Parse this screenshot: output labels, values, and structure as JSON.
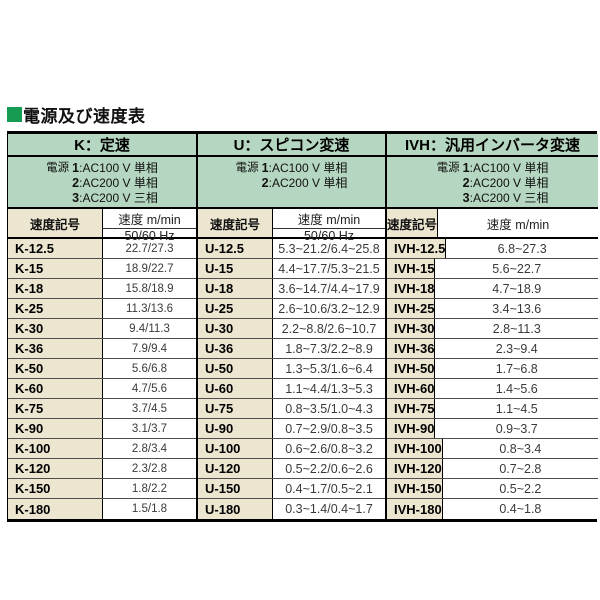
{
  "page": {
    "title": "電源及び速度表"
  },
  "colors": {
    "title_bullet_green": "#169c52",
    "header_green": "#b5d6c0",
    "symbol_beige": "#ece6d1",
    "border_black": "#000000"
  },
  "table": {
    "groups": [
      {
        "header": "K：定速",
        "power_label": "電源",
        "power_items": [
          {
            "num": "1",
            "desc": ":AC100 V 単相"
          },
          {
            "num": "2",
            "desc": ":AC200 V 単相"
          },
          {
            "num": "3",
            "desc": ":AC200 V 三相"
          }
        ],
        "symbol_header": "速度記号",
        "speed_header": "速度 m/min",
        "speed_subheader": "50/60 Hz",
        "rows": [
          {
            "symbol": "K-12.5",
            "value": "22.7/27.3"
          },
          {
            "symbol": "K-15",
            "value": "18.9/22.7"
          },
          {
            "symbol": "K-18",
            "value": "15.8/18.9"
          },
          {
            "symbol": "K-25",
            "value": "11.3/13.6"
          },
          {
            "symbol": "K-30",
            "value": "9.4/11.3"
          },
          {
            "symbol": "K-36",
            "value": "7.9/9.4"
          },
          {
            "symbol": "K-50",
            "value": "5.6/6.8"
          },
          {
            "symbol": "K-60",
            "value": "4.7/5.6"
          },
          {
            "symbol": "K-75",
            "value": "3.7/4.5"
          },
          {
            "symbol": "K-90",
            "value": "3.1/3.7"
          },
          {
            "symbol": "K-100",
            "value": "2.8/3.4"
          },
          {
            "symbol": "K-120",
            "value": "2.3/2.8"
          },
          {
            "symbol": "K-150",
            "value": "1.8/2.2"
          },
          {
            "symbol": "K-180",
            "value": "1.5/1.8"
          }
        ]
      },
      {
        "header": "U：スピコン変速",
        "power_label": "電源",
        "power_items": [
          {
            "num": "1",
            "desc": ":AC100 V 単相"
          },
          {
            "num": "2",
            "desc": ":AC200 V 単相"
          }
        ],
        "symbol_header": "速度記号",
        "speed_header": "速度 m/min",
        "speed_subheader": "50/60 Hz",
        "rows": [
          {
            "symbol": "U-12.5",
            "value": "5.3~21.2/6.4~25.8"
          },
          {
            "symbol": "U-15",
            "value": "4.4~17.7/5.3~21.5"
          },
          {
            "symbol": "U-18",
            "value": "3.6~14.7/4.4~17.9"
          },
          {
            "symbol": "U-25",
            "value": "2.6~10.6/3.2~12.9"
          },
          {
            "symbol": "U-30",
            "value": "2.2~8.8/2.6~10.7"
          },
          {
            "symbol": "U-36",
            "value": "1.8~7.3/2.2~8.9"
          },
          {
            "symbol": "U-50",
            "value": "1.3~5.3/1.6~6.4"
          },
          {
            "symbol": "U-60",
            "value": "1.1~4.4/1.3~5.3"
          },
          {
            "symbol": "U-75",
            "value": "0.8~3.5/1.0~4.3"
          },
          {
            "symbol": "U-90",
            "value": "0.7~2.9/0.8~3.5"
          },
          {
            "symbol": "U-100",
            "value": "0.6~2.6/0.8~3.2"
          },
          {
            "symbol": "U-120",
            "value": "0.5~2.2/0.6~2.6"
          },
          {
            "symbol": "U-150",
            "value": "0.4~1.7/0.5~2.1"
          },
          {
            "symbol": "U-180",
            "value": "0.3~1.4/0.4~1.7"
          }
        ]
      },
      {
        "header": "IVH：汎用インバータ変速",
        "power_label": "電源",
        "power_items": [
          {
            "num": "1",
            "desc": ":AC100 V 単相"
          },
          {
            "num": "2",
            "desc": ":AC200 V 単相"
          },
          {
            "num": "3",
            "desc": ":AC200 V 三相"
          }
        ],
        "symbol_header": "速度記号",
        "speed_header": "速度 m/min",
        "speed_subheader": "",
        "rows": [
          {
            "symbol": "IVH-12.5",
            "value": "6.8~27.3"
          },
          {
            "symbol": "IVH-15",
            "value": "5.6~22.7"
          },
          {
            "symbol": "IVH-18",
            "value": "4.7~18.9"
          },
          {
            "symbol": "IVH-25",
            "value": "3.4~13.6"
          },
          {
            "symbol": "IVH-30",
            "value": "2.8~11.3"
          },
          {
            "symbol": "IVH-36",
            "value": "2.3~9.4"
          },
          {
            "symbol": "IVH-50",
            "value": "1.7~6.8"
          },
          {
            "symbol": "IVH-60",
            "value": "1.4~5.6"
          },
          {
            "symbol": "IVH-75",
            "value": "1.1~4.5"
          },
          {
            "symbol": "IVH-90",
            "value": "0.9~3.7"
          },
          {
            "symbol": "IVH-100",
            "value": "0.8~3.4"
          },
          {
            "symbol": "IVH-120",
            "value": "0.7~2.8"
          },
          {
            "symbol": "IVH-150",
            "value": "0.5~2.2"
          },
          {
            "symbol": "IVH-180",
            "value": "0.4~1.8"
          }
        ]
      }
    ]
  }
}
